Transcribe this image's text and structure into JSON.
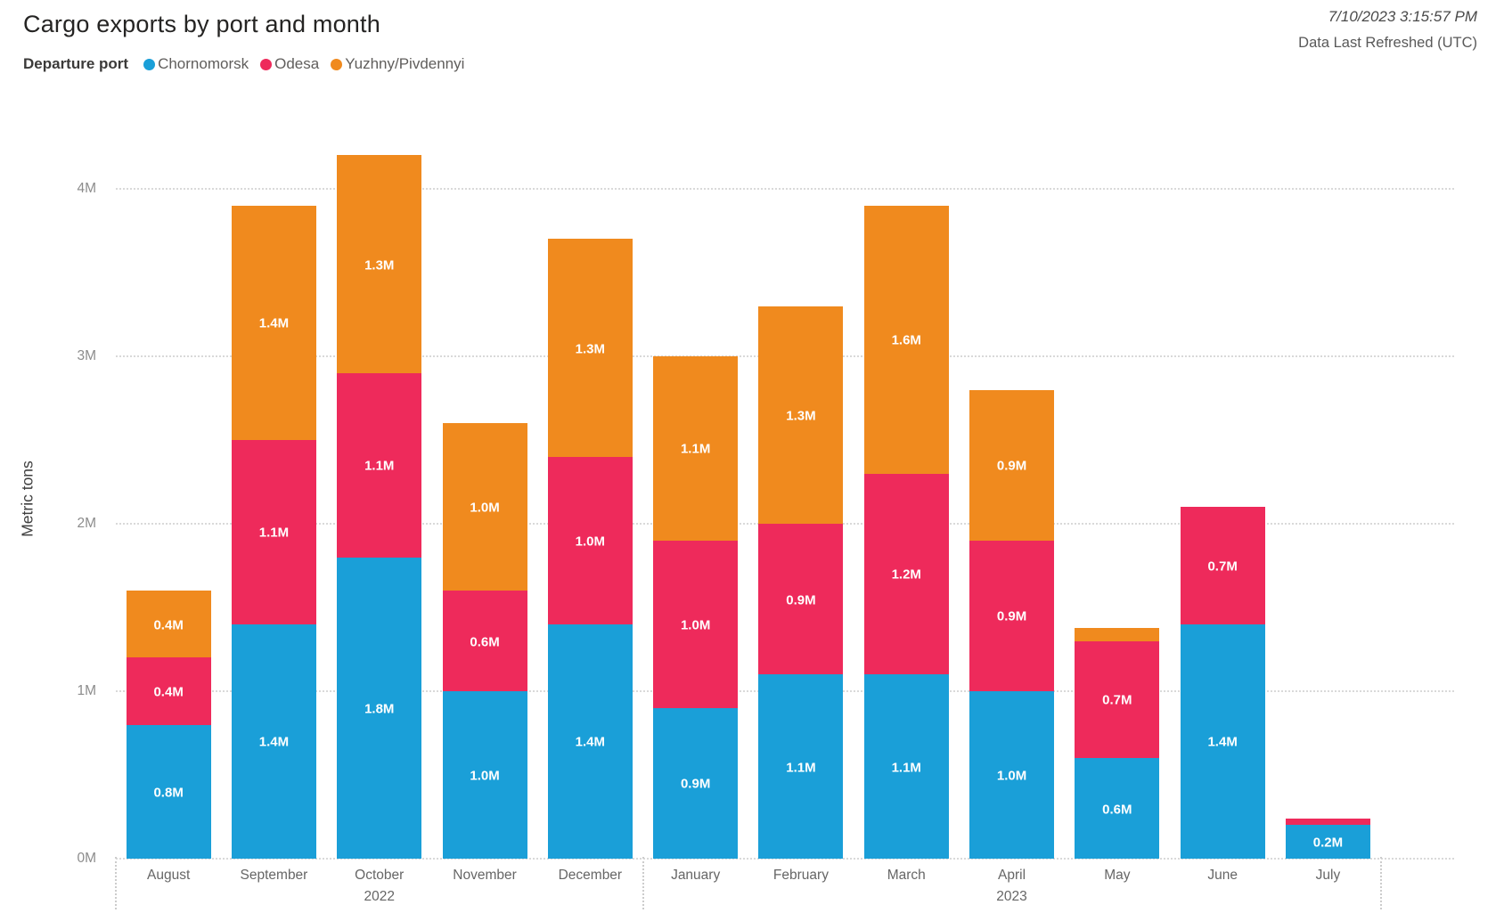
{
  "header": {
    "title": "Cargo exports by port and month",
    "refresh_time": "7/10/2023 3:15:57 PM",
    "refresh_label": "Data Last Refreshed (UTC)"
  },
  "legend": {
    "title": "Departure port",
    "items": [
      {
        "label": "Chornomorsk",
        "color": "#1A9FD8"
      },
      {
        "label": "Odesa",
        "color": "#EE2A5B"
      },
      {
        "label": "Yuzhny/Pivdennyi",
        "color": "#F08A1E"
      }
    ]
  },
  "chart_data": {
    "type": "bar",
    "stacked": true,
    "title": "Cargo exports by port and month",
    "xlabel": "",
    "ylabel": "Metric tons",
    "unit": "metric tons (millions)",
    "ylim": [
      0,
      4.3
    ],
    "yticks": [
      "0M",
      "1M",
      "2M",
      "3M",
      "4M"
    ],
    "grid": "horizontal dotted",
    "legend_position": "top-left",
    "categories": [
      {
        "label": "August"
      },
      {
        "label": "September"
      },
      {
        "label": "October",
        "year": "2022"
      },
      {
        "label": "November"
      },
      {
        "label": "December"
      },
      {
        "label": "January"
      },
      {
        "label": "February"
      },
      {
        "label": "March"
      },
      {
        "label": "April",
        "year": "2023"
      },
      {
        "label": "May"
      },
      {
        "label": "June"
      },
      {
        "label": "July"
      }
    ],
    "year_separator_slots": [
      0,
      5,
      12
    ],
    "series": [
      {
        "name": "Chornomorsk",
        "color": "#1A9FD8",
        "values": [
          0.8,
          1.4,
          1.8,
          1.0,
          1.4,
          0.9,
          1.1,
          1.1,
          1.0,
          0.6,
          1.4,
          0.2
        ],
        "labels": [
          "0.8M",
          "1.4M",
          "1.8M",
          "1.0M",
          "1.4M",
          "0.9M",
          "1.1M",
          "1.1M",
          "1.0M",
          "0.6M",
          "1.4M",
          "0.2M"
        ]
      },
      {
        "name": "Odesa",
        "color": "#EE2A5B",
        "values": [
          0.4,
          1.1,
          1.1,
          0.6,
          1.0,
          1.0,
          0.9,
          1.2,
          0.9,
          0.7,
          0.7,
          0.04
        ],
        "labels": [
          "0.4M",
          "1.1M",
          "1.1M",
          "0.6M",
          "1.0M",
          "1.0M",
          "0.9M",
          "1.2M",
          "0.9M",
          "0.7M",
          "0.7M",
          null
        ]
      },
      {
        "name": "Yuzhny/Pivdennyi",
        "color": "#F08A1E",
        "values": [
          0.4,
          1.4,
          1.3,
          1.0,
          1.3,
          1.1,
          1.3,
          1.6,
          0.9,
          0.08,
          0,
          0
        ],
        "labels": [
          "0.4M",
          "1.4M",
          "1.3M",
          "1.0M",
          "1.3M",
          "1.1M",
          "1.3M",
          "1.6M",
          "0.9M",
          null,
          null,
          null
        ]
      }
    ]
  }
}
